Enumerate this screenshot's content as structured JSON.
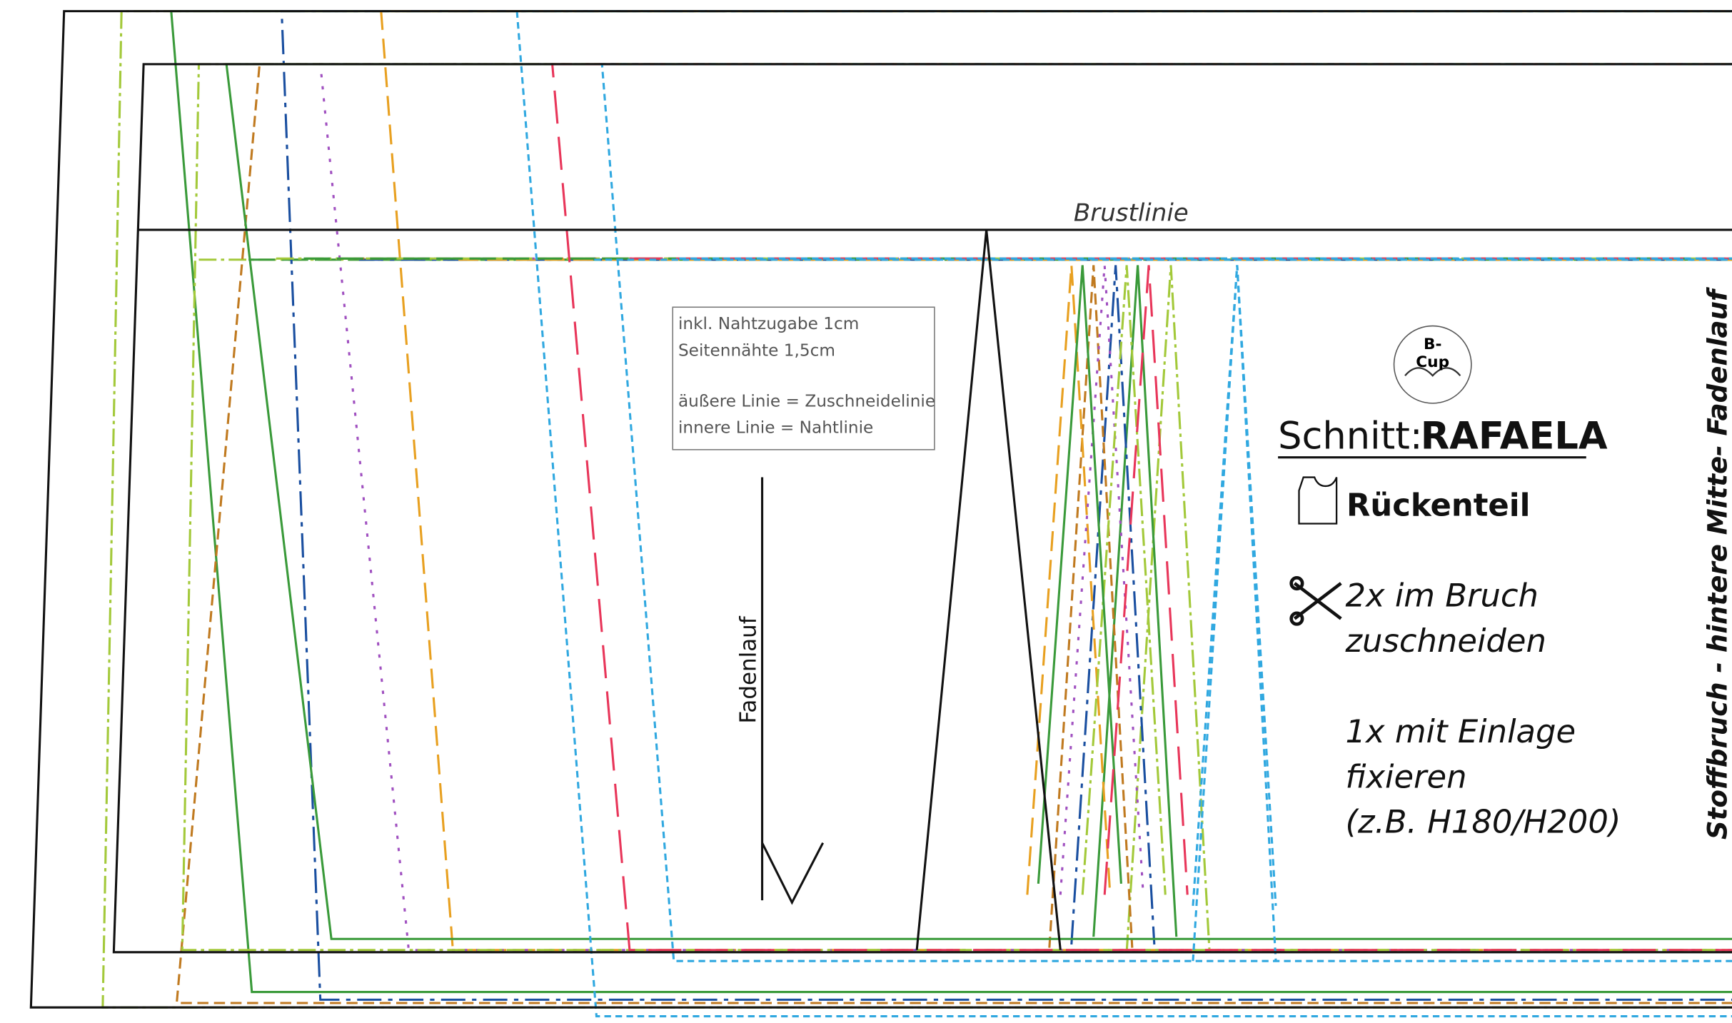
{
  "pattern": {
    "bust_line": "Brustlinie",
    "note": [
      "inkl. Nahtzugabe 1cm",
      "Seitennähte 1,5cm",
      "äußere Linie = Zuschneidelinie",
      "innere Linie = Nahtlinie"
    ],
    "grain_label": "Fadenlauf",
    "cup_badge": [
      "B-",
      "Cup"
    ],
    "title_prefix": "Schnitt:",
    "title_name": "RAFAELA",
    "piece": "Rückenteil",
    "cut_instructions": [
      "2x im Bruch",
      "zuschneiden"
    ],
    "interfacing": [
      "1x mit Einlage",
      "fixieren",
      "(z.B. H180/H200)"
    ],
    "fold_label": "Stoffbruch - hintere Mitte- Fadenlauf"
  }
}
